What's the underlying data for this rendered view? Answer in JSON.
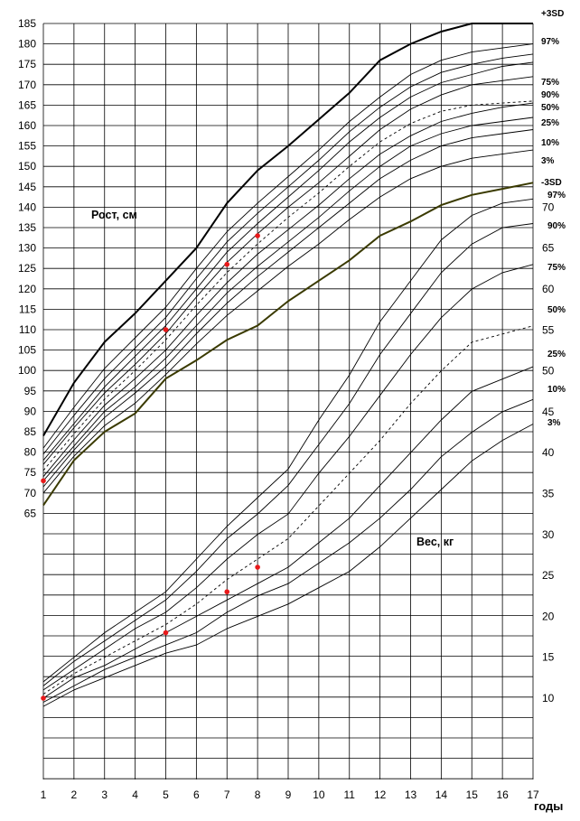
{
  "chart_data": {
    "type": "line",
    "xlabel": "годы",
    "x_ticks": [
      1,
      2,
      3,
      4,
      5,
      6,
      7,
      8,
      9,
      10,
      11,
      12,
      13,
      14,
      15,
      16,
      17
    ],
    "xlim": [
      1,
      17
    ],
    "grid": true,
    "height_axis": {
      "label": "Рост, см",
      "ylim": [
        65,
        185
      ],
      "ticks": [
        65,
        70,
        75,
        80,
        85,
        90,
        95,
        100,
        105,
        110,
        115,
        120,
        125,
        130,
        135,
        140,
        145,
        150,
        155,
        160,
        165,
        170,
        175,
        180,
        185
      ]
    },
    "weight_axis": {
      "label": "Вес, кг",
      "ylim": [
        10,
        70
      ],
      "ticks": [
        10,
        15,
        20,
        25,
        30,
        35,
        40,
        45,
        50,
        55,
        60,
        65,
        70
      ]
    },
    "height_series": [
      {
        "name": "+3SD",
        "bold": true,
        "x": [
          1,
          2,
          3,
          4,
          5,
          6,
          7,
          8,
          9,
          10,
          11,
          12,
          13,
          14,
          15,
          16,
          17
        ],
        "values": [
          84,
          97,
          107,
          114,
          122,
          130,
          141,
          149,
          155,
          161.5,
          168,
          176,
          180,
          183,
          185,
          185,
          185
        ]
      },
      {
        "name": "97%",
        "x": [
          1,
          2,
          3,
          4,
          5,
          6,
          7,
          8,
          9,
          10,
          11,
          12,
          13,
          14,
          15,
          16,
          17
        ],
        "values": [
          81,
          91,
          100.5,
          108,
          115.5,
          125,
          134,
          141,
          147.5,
          154,
          161,
          167,
          172.5,
          176,
          178,
          179,
          180
        ]
      },
      {
        "name": "",
        "x": [
          1,
          2,
          3,
          4,
          5,
          6,
          7,
          8,
          9,
          10,
          11,
          12,
          13,
          14,
          15,
          16,
          17
        ],
        "values": [
          79.5,
          89,
          98,
          105.5,
          113,
          122.5,
          131.5,
          138.5,
          145,
          151.5,
          158.5,
          164.5,
          169.5,
          173,
          175,
          176.5,
          177.5
        ]
      },
      {
        "name": "75%",
        "x": [
          1,
          2,
          3,
          4,
          5,
          6,
          7,
          8,
          9,
          10,
          11,
          12,
          13,
          14,
          15,
          16,
          17
        ],
        "values": [
          78,
          87,
          96,
          103.5,
          111,
          120,
          129,
          136,
          142.5,
          149,
          156,
          162,
          167,
          170.5,
          172.5,
          174.5,
          175.5
        ]
      },
      {
        "name": "90%",
        "x": [
          1,
          2,
          3,
          4,
          5,
          6,
          7,
          8,
          9,
          10,
          11,
          12,
          13,
          14,
          15,
          16,
          17
        ],
        "values": [
          77,
          86,
          94.5,
          101.5,
          109,
          118,
          126.5,
          133.5,
          140,
          146,
          152.5,
          159,
          164,
          167.5,
          170,
          171,
          172
        ]
      },
      {
        "name": "50%",
        "dashed": true,
        "x": [
          1,
          2,
          3,
          4,
          5,
          6,
          7,
          8,
          9,
          10,
          11,
          12,
          13,
          14,
          15,
          16,
          17
        ],
        "values": [
          75.5,
          84.5,
          93,
          100,
          107.5,
          116,
          124,
          131,
          137.5,
          143.5,
          150,
          156,
          160.5,
          163.5,
          165,
          165.5,
          166
        ]
      },
      {
        "name": "25%",
        "x": [
          1,
          2,
          3,
          4,
          5,
          6,
          7,
          8,
          9,
          10,
          11,
          12,
          13,
          14,
          15,
          16,
          17
        ],
        "values": [
          74,
          83,
          91.5,
          98,
          105,
          113.5,
          121.5,
          128.5,
          134.5,
          140.5,
          147,
          153,
          157.5,
          161,
          163,
          164.5,
          165.5
        ]
      },
      {
        "name": "",
        "x": [
          1,
          2,
          3,
          4,
          5,
          6,
          7,
          8,
          9,
          10,
          11,
          12,
          13,
          14,
          15,
          16,
          17
        ],
        "values": [
          73,
          81.5,
          90,
          96,
          103,
          111,
          119,
          125.5,
          131.5,
          137.5,
          144,
          150,
          155,
          158,
          160,
          161,
          162
        ]
      },
      {
        "name": "10%",
        "x": [
          1,
          2,
          3,
          4,
          5,
          6,
          7,
          8,
          9,
          10,
          11,
          12,
          13,
          14,
          15,
          16,
          17
        ],
        "values": [
          71.5,
          80.5,
          88.5,
          94.5,
          101,
          109,
          116.5,
          123,
          129,
          135,
          141,
          147,
          151.5,
          155,
          157,
          158,
          159
        ]
      },
      {
        "name": "3%",
        "x": [
          1,
          2,
          3,
          4,
          5,
          6,
          7,
          8,
          9,
          10,
          11,
          12,
          13,
          14,
          15,
          16,
          17
        ],
        "values": [
          70,
          79,
          86.5,
          92,
          99,
          106.5,
          113.5,
          119.5,
          125.5,
          131,
          137,
          142.5,
          147,
          150,
          152,
          153,
          154
        ]
      },
      {
        "name": "-3SD",
        "bold": true,
        "x": [
          1,
          2,
          3,
          4,
          5,
          6,
          7,
          8,
          9,
          10,
          11,
          12,
          13,
          14,
          15,
          16,
          17
        ],
        "values": [
          67,
          78,
          85,
          89.5,
          98,
          102.5,
          107.5,
          111,
          117,
          122,
          127,
          133,
          136.5,
          140.5,
          143,
          144.5,
          146
        ]
      }
    ],
    "weight_series": [
      {
        "name": "97%",
        "x": [
          1,
          2,
          3,
          4,
          5,
          6,
          7,
          8,
          9,
          10,
          11,
          12,
          13,
          14,
          15,
          16,
          17
        ],
        "values": [
          12,
          15,
          18,
          20.5,
          23,
          27,
          31,
          34.5,
          38,
          44,
          49.5,
          56,
          61,
          66,
          69,
          70.5,
          71
        ]
      },
      {
        "name": "90%",
        "x": [
          1,
          2,
          3,
          4,
          5,
          6,
          7,
          8,
          9,
          10,
          11,
          12,
          13,
          14,
          15,
          16,
          17
        ],
        "values": [
          11.5,
          14.5,
          17,
          19.5,
          22,
          25.5,
          29.5,
          32.5,
          36,
          41,
          46,
          52,
          57,
          62,
          65.5,
          67.5,
          68
        ]
      },
      {
        "name": "75%",
        "x": [
          1,
          2,
          3,
          4,
          5,
          6,
          7,
          8,
          9,
          10,
          11,
          12,
          13,
          14,
          15,
          16,
          17
        ],
        "values": [
          11,
          13.5,
          16,
          18.5,
          20.5,
          23.5,
          27,
          30,
          32.5,
          37.5,
          42,
          47,
          52,
          56.5,
          60,
          62,
          63
        ]
      },
      {
        "name": "50%",
        "dashed": true,
        "x": [
          1,
          2,
          3,
          4,
          5,
          6,
          7,
          8,
          9,
          10,
          11,
          12,
          13,
          14,
          15,
          16,
          17
        ],
        "values": [
          10.5,
          13,
          15,
          17,
          19,
          21.5,
          24.5,
          27,
          29.5,
          33.5,
          37.5,
          41.5,
          46,
          50,
          53.5,
          54.5,
          55.5
        ]
      },
      {
        "name": "25%",
        "x": [
          1,
          2,
          3,
          4,
          5,
          6,
          7,
          8,
          9,
          10,
          11,
          12,
          13,
          14,
          15,
          16,
          17
        ],
        "values": [
          10,
          12.5,
          14,
          16,
          18,
          20,
          22,
          24,
          26,
          29,
          32,
          36,
          40,
          44,
          47.5,
          49,
          50.5
        ]
      },
      {
        "name": "10%",
        "x": [
          1,
          2,
          3,
          4,
          5,
          6,
          7,
          8,
          9,
          10,
          11,
          12,
          13,
          14,
          15,
          16,
          17
        ],
        "values": [
          9.5,
          11.5,
          13.5,
          15,
          16.5,
          18,
          20.5,
          22.5,
          24,
          26.5,
          29,
          32,
          35.5,
          39.5,
          42.5,
          45,
          46.5
        ]
      },
      {
        "name": "3%",
        "x": [
          1,
          2,
          3,
          4,
          5,
          6,
          7,
          8,
          9,
          10,
          11,
          12,
          13,
          14,
          15,
          16,
          17
        ],
        "values": [
          9,
          11,
          12.5,
          14,
          15.5,
          16.5,
          18.5,
          20,
          21.5,
          23.5,
          25.5,
          28.5,
          32,
          35.5,
          39,
          41.5,
          43.5
        ]
      }
    ],
    "patient_height": {
      "x": [
        1,
        5,
        7,
        8
      ],
      "values": [
        73,
        110,
        126,
        133
      ]
    },
    "patient_weight": {
      "x": [
        1,
        5,
        7,
        8
      ],
      "values": [
        10,
        18,
        23,
        26
      ]
    },
    "colors": {
      "grid": "#000000",
      "curve": "#000000",
      "lower_bold": "#3a3a00",
      "patient": "#e8191a"
    }
  }
}
